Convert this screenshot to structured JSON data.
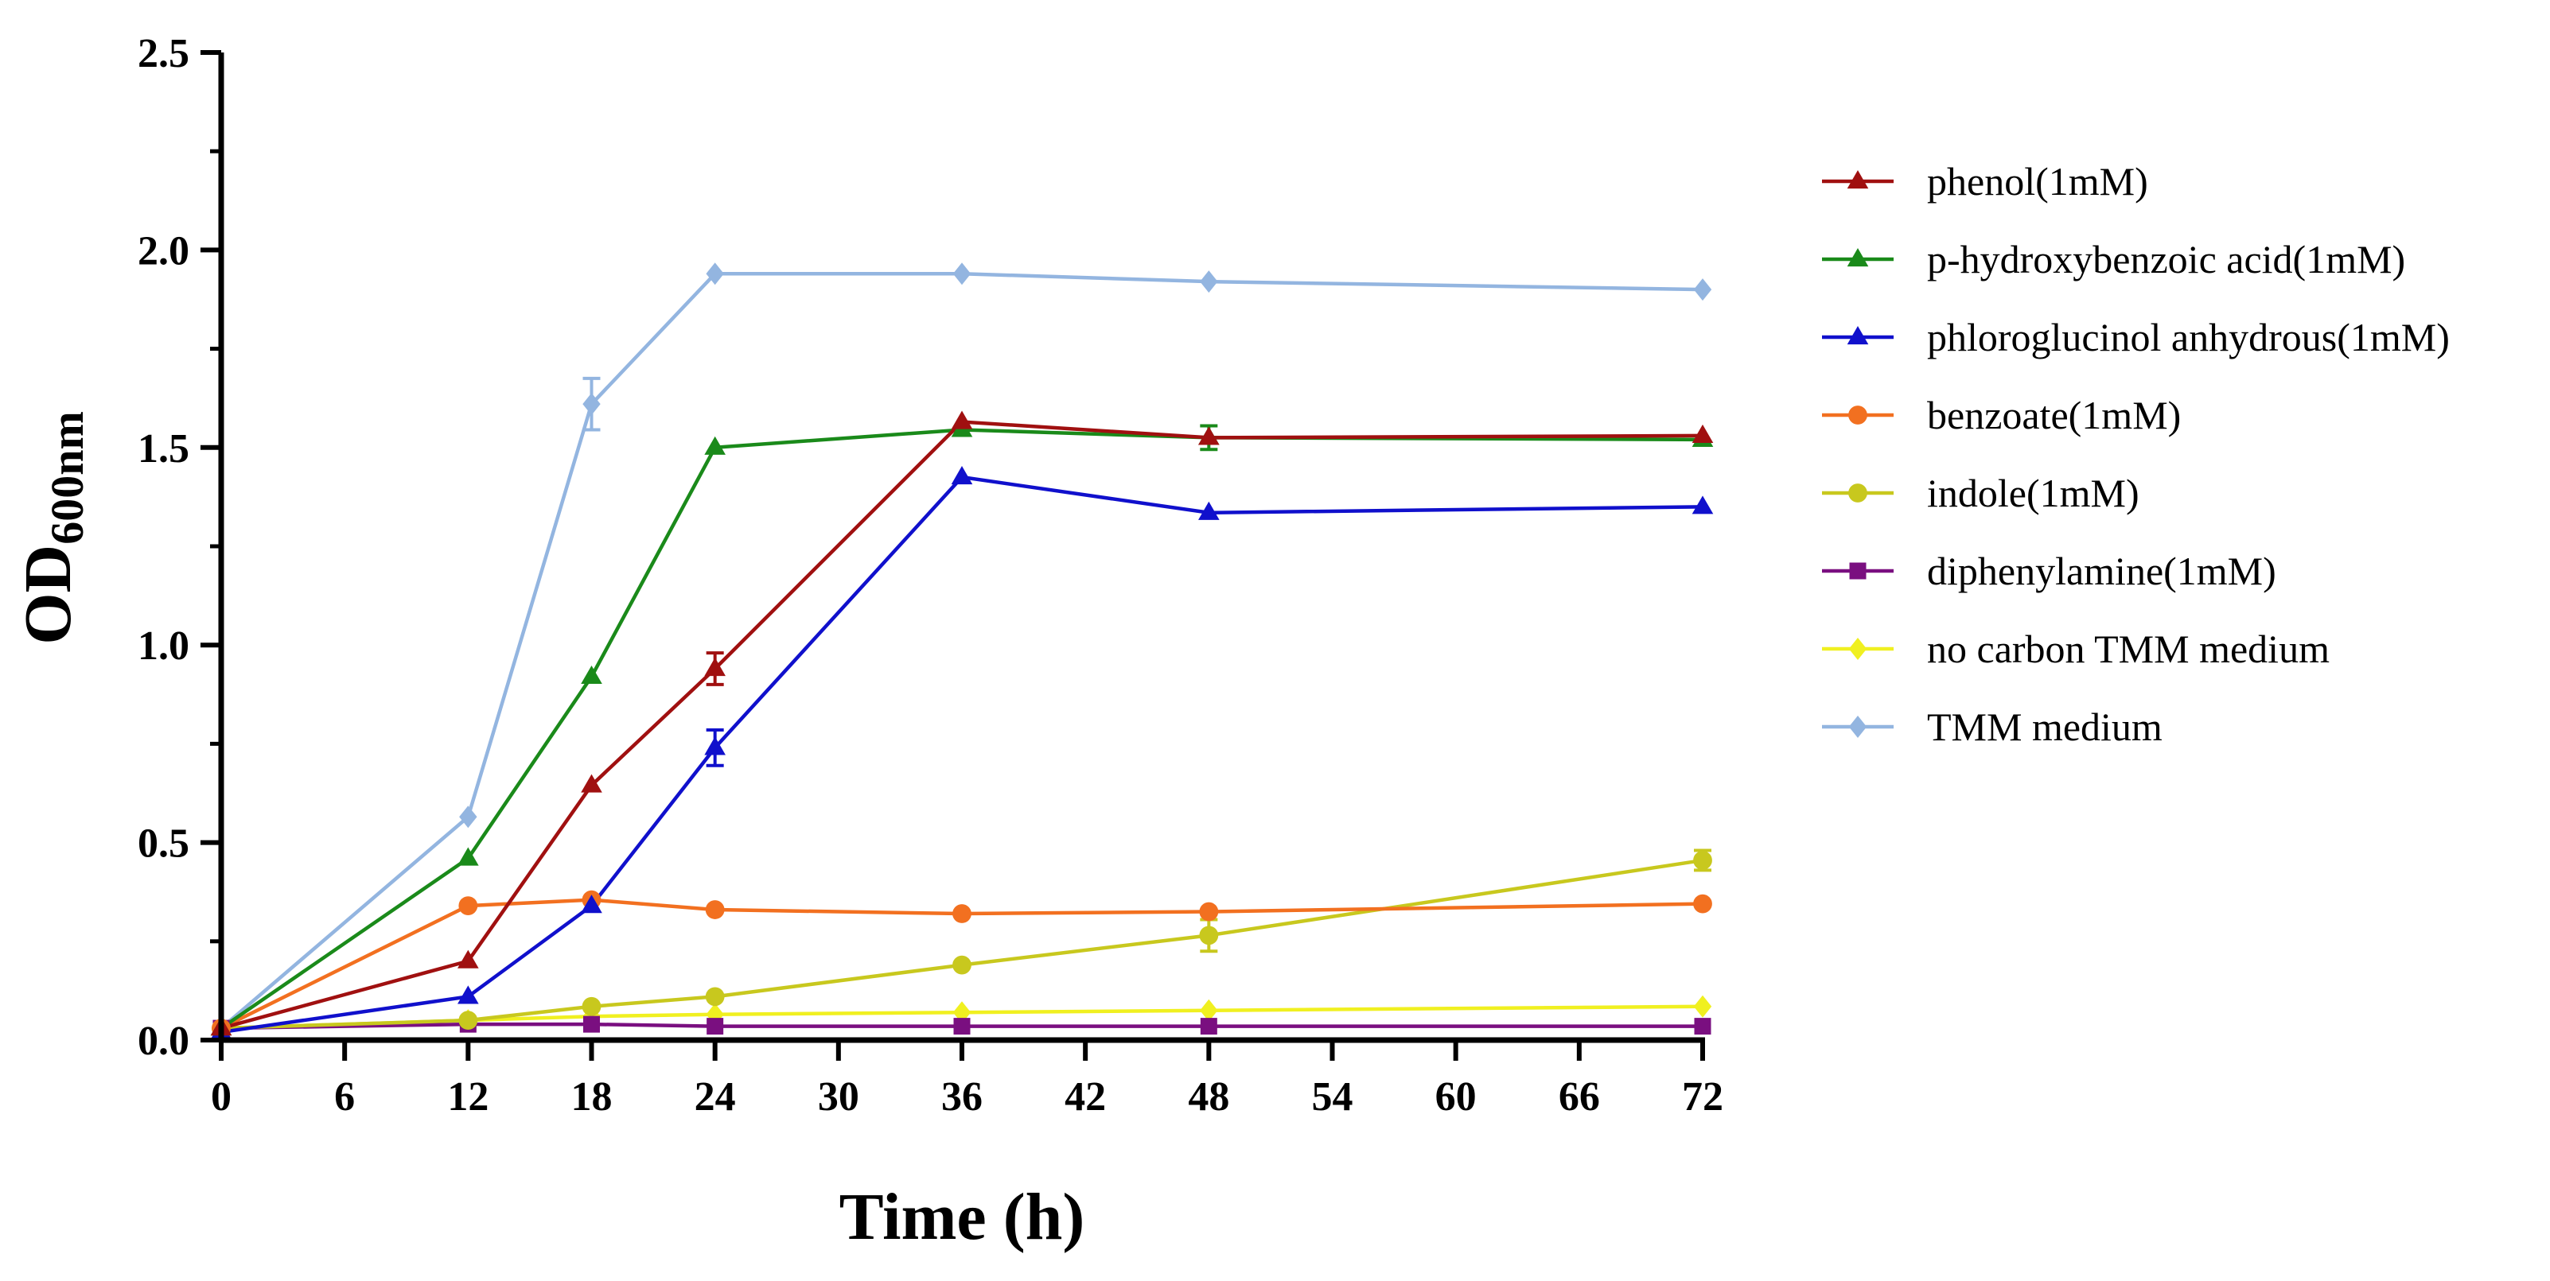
{
  "chart_data": {
    "type": "line",
    "title": "",
    "xlabel": "Time (h)",
    "ylabel": {
      "main": "OD",
      "subscript": "600nm"
    },
    "xlim": [
      0,
      72
    ],
    "ylim": [
      0,
      2.5
    ],
    "x_ticks": [
      "0",
      "6",
      "12",
      "18",
      "24",
      "30",
      "36",
      "42",
      "48",
      "54",
      "60",
      "66",
      "72"
    ],
    "y_ticks": [
      "0.0",
      "0.5",
      "1.0",
      "1.5",
      "2.0",
      "2.5"
    ],
    "grid": false,
    "legend_position": "right",
    "x": [
      0,
      12,
      18,
      24,
      36,
      48,
      72
    ],
    "series": [
      {
        "name": "phenol(1mM)",
        "color": "#a01010",
        "marker": "triangle",
        "values": [
          0.03,
          0.2,
          0.645,
          0.94,
          1.565,
          1.525,
          1.53
        ],
        "errors": [
          0,
          0,
          0,
          0.04,
          0,
          0,
          0
        ]
      },
      {
        "name": "p-hydroxybenzoic acid(1mM)",
        "color": "#1a8a1a",
        "marker": "triangle",
        "values": [
          0.03,
          0.46,
          0.92,
          1.5,
          1.545,
          1.525,
          1.52
        ],
        "errors": [
          0,
          0,
          0,
          0,
          0,
          0.03,
          0
        ]
      },
      {
        "name": "phloroglucinol anhydrous(1mM)",
        "color": "#1010cc",
        "marker": "triangle",
        "values": [
          0.02,
          0.11,
          0.34,
          0.74,
          1.425,
          1.335,
          1.35
        ],
        "errors": [
          0,
          0,
          0,
          0.045,
          0,
          0,
          0
        ]
      },
      {
        "name": "benzoate(1mM)",
        "color": "#f27020",
        "marker": "circle",
        "values": [
          0.03,
          0.34,
          0.355,
          0.33,
          0.32,
          0.325,
          0.345
        ],
        "errors": [
          0,
          0,
          0,
          0,
          0,
          0,
          0
        ]
      },
      {
        "name": "indole(1mM)",
        "color": "#c8c81e",
        "marker": "circle",
        "values": [
          0.03,
          0.05,
          0.085,
          0.11,
          0.19,
          0.265,
          0.455
        ],
        "errors": [
          0,
          0,
          0,
          0,
          0,
          0.04,
          0.025
        ]
      },
      {
        "name": "diphenylamine(1mM)",
        "color": "#7a0f80",
        "marker": "square",
        "values": [
          0.03,
          0.04,
          0.04,
          0.035,
          0.035,
          0.035,
          0.035
        ],
        "errors": [
          0,
          0,
          0,
          0,
          0,
          0,
          0
        ]
      },
      {
        "name": "no carbon TMM medium",
        "color": "#f0f020",
        "marker": "diamond",
        "values": [
          0.03,
          0.05,
          0.06,
          0.065,
          0.07,
          0.075,
          0.085
        ],
        "errors": [
          0,
          0,
          0,
          0,
          0,
          0,
          0
        ]
      },
      {
        "name": "TMM medium",
        "color": "#93b5e0",
        "marker": "diamond",
        "values": [
          0.03,
          0.565,
          1.61,
          1.94,
          1.94,
          1.92,
          1.9
        ],
        "errors": [
          0,
          0,
          0.065,
          0,
          0,
          0,
          0
        ]
      }
    ]
  }
}
